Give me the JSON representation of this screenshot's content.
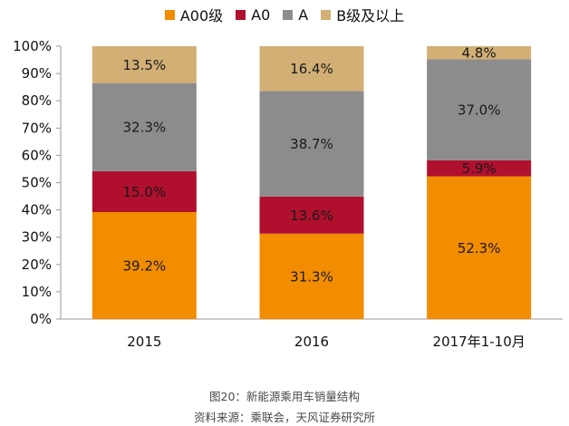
{
  "chart_data": {
    "type": "bar",
    "stacked": true,
    "categories": [
      "2015",
      "2016",
      "2017年1-10月"
    ],
    "series": [
      {
        "name": "A00级",
        "values": [
          39.2,
          31.3,
          52.3
        ],
        "color": "#F28C00"
      },
      {
        "name": "A0",
        "values": [
          15.0,
          13.6,
          5.9
        ],
        "color": "#B0102E"
      },
      {
        "name": "A",
        "values": [
          32.3,
          38.7,
          37.0
        ],
        "color": "#8C8C8C"
      },
      {
        "name": "B级及以上",
        "values": [
          13.5,
          16.4,
          4.8
        ],
        "color": "#D2AF75"
      }
    ],
    "labels": [
      [
        "39.2%",
        "31.3%",
        "52.3%"
      ],
      [
        "15.0%",
        "13.6%",
        "5.9%"
      ],
      [
        "32.3%",
        "38.7%",
        "37.0%"
      ],
      [
        "13.5%",
        "16.4%",
        "4.8%"
      ]
    ],
    "ylim": [
      0,
      100
    ],
    "yticks": [
      "0%",
      "10%",
      "20%",
      "30%",
      "40%",
      "50%",
      "60%",
      "70%",
      "80%",
      "90%",
      "100%"
    ],
    "legend_position": "top-center",
    "grid": false
  },
  "caption": {
    "title": "图20：新能源乘用车销量结构",
    "source": "资料来源：乘联会，天风证券研究所"
  }
}
